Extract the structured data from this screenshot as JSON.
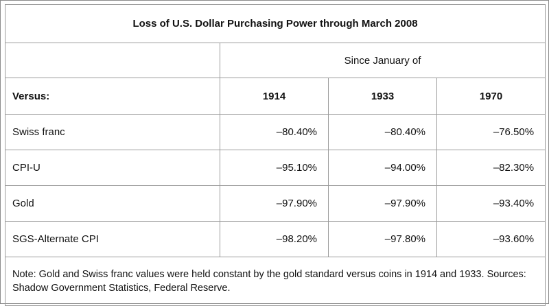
{
  "table": {
    "title": "Loss of U.S. Dollar Purchasing Power through March 2008",
    "since_label": "Since January of",
    "versus_label": "Versus:",
    "years": [
      "1914",
      "1933",
      "1970"
    ],
    "rows": [
      {
        "label": "Swiss franc",
        "values": [
          "–80.40%",
          "–80.40%",
          "–76.50%"
        ]
      },
      {
        "label": "CPI-U",
        "values": [
          "–95.10%",
          "–94.00%",
          "–82.30%"
        ]
      },
      {
        "label": "Gold",
        "values": [
          "–97.90%",
          "–97.90%",
          "–93.40%"
        ]
      },
      {
        "label": "SGS-Alternate CPI",
        "values": [
          "–98.20%",
          "–97.80%",
          "–93.60%"
        ]
      }
    ],
    "note": "Note: Gold and Swiss franc values were held constant by the gold standard versus coins in 1914 and 1933. Sources: Shadow Government Statistics, Federal Reserve."
  }
}
